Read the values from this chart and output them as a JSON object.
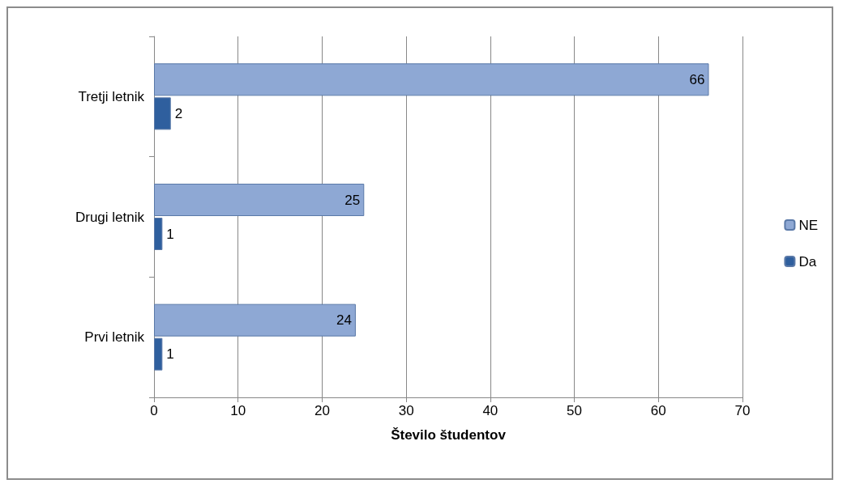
{
  "chart_data": {
    "type": "bar",
    "orientation": "horizontal",
    "xlabel": "Število študentov",
    "categories": [
      "Tretji letnik",
      "Drugi letnik",
      "Prvi letnik"
    ],
    "series": [
      {
        "name": "NE",
        "color": "#8ea8d4",
        "values": [
          66,
          25,
          24
        ]
      },
      {
        "name": "Da",
        "color": "#2f5f9e",
        "values": [
          2,
          1,
          1
        ]
      }
    ],
    "xlim": [
      0,
      70
    ],
    "xticks": [
      0,
      10,
      20,
      30,
      40,
      50,
      60,
      70
    ],
    "grid": "x",
    "legend": "right",
    "data_labels": true
  }
}
